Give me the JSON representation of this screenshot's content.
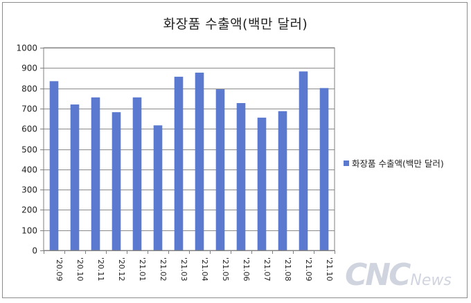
{
  "chart_data": {
    "type": "bar",
    "title": "화장품 수출액(백만 달러)",
    "categories": [
      "'20.09",
      "'20.10",
      "'20.11",
      "'20.12",
      "'21.01",
      "'21.02",
      "'21.03",
      "'21.04",
      "'21.05",
      "'21.06",
      "'21.07",
      "'21.08",
      "'21.09",
      "'21.10"
    ],
    "series": [
      {
        "name": "화장품 수출액(백만 달러)",
        "values": [
          835,
          720,
          755,
          682,
          755,
          617,
          857,
          877,
          795,
          727,
          655,
          687,
          883,
          801
        ]
      }
    ],
    "yticks": [
      "0",
      "100",
      "200",
      "300",
      "400",
      "500",
      "600",
      "700",
      "800",
      "900",
      "1000"
    ],
    "ylim": [
      0,
      1000
    ],
    "grid": true,
    "legend_position": "right",
    "bar_color": "#5a79cf"
  },
  "watermark": {
    "main": "CNC",
    "sub": "News"
  }
}
